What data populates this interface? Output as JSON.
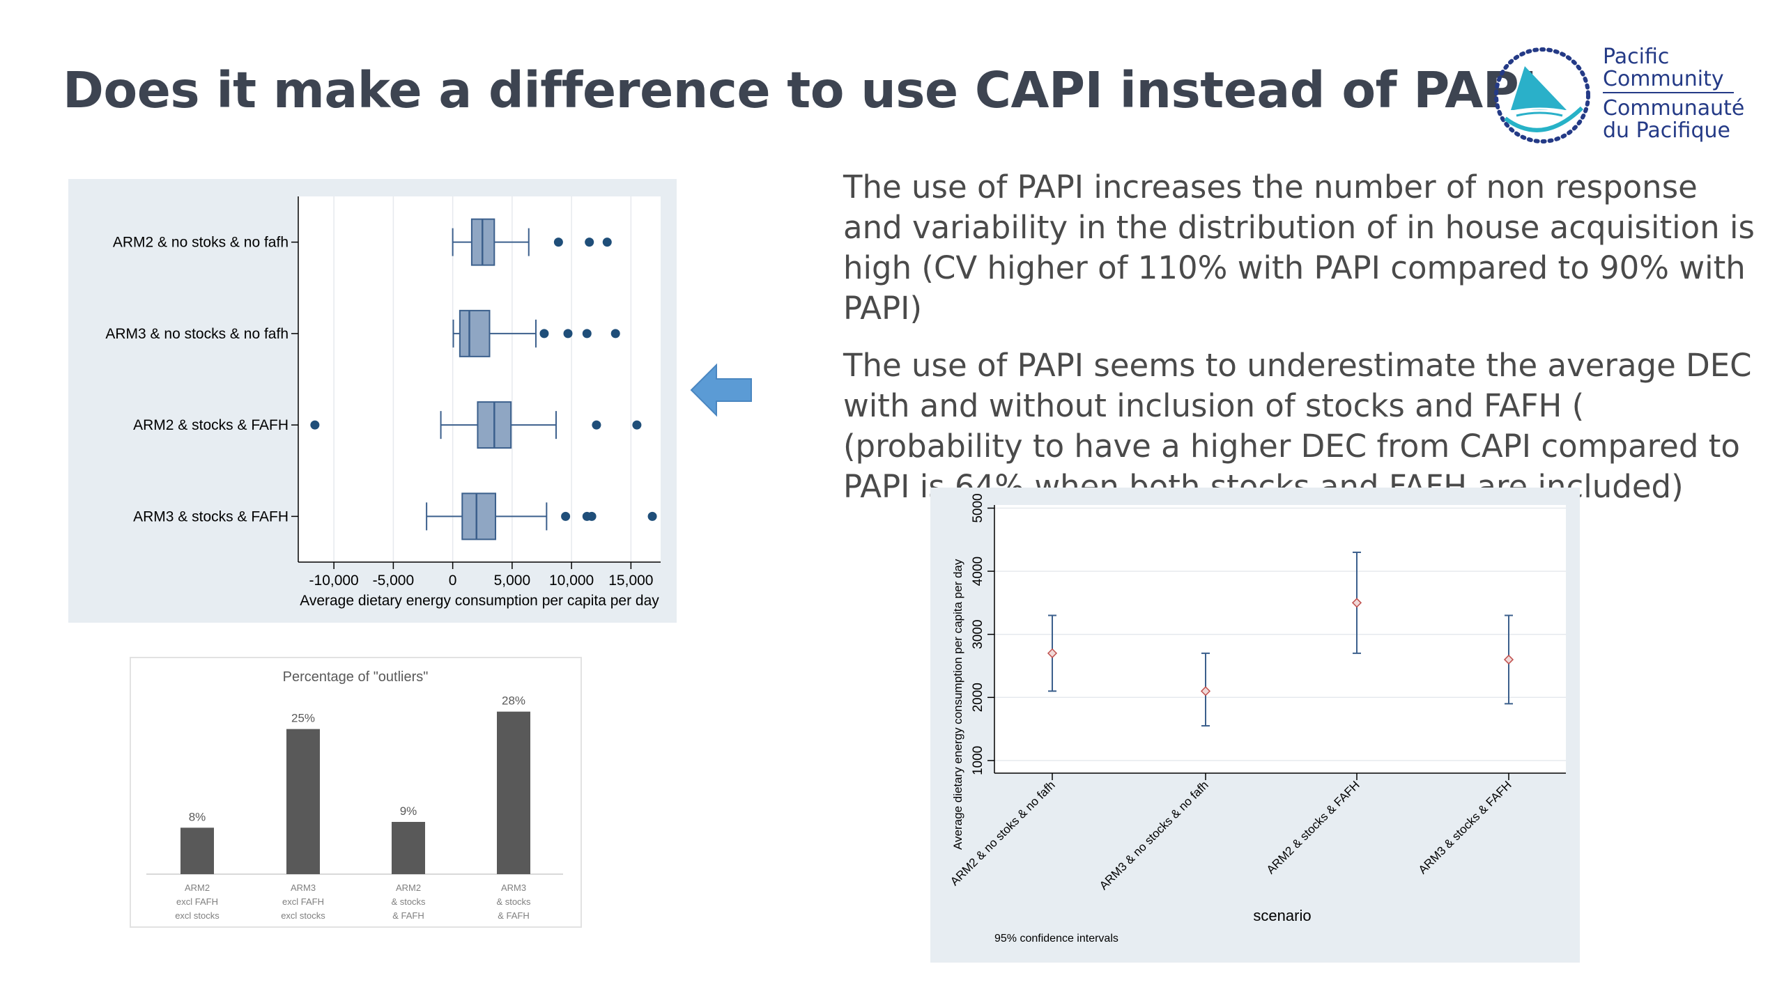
{
  "slide": {
    "title": "Does it make a difference to use CAPI instead of PAPI",
    "logo": {
      "line1": "Pacific",
      "line2": "Community",
      "line3": "Communauté",
      "line4": "du Pacifique"
    },
    "bullets": [
      "The use of PAPI increases the number of non response and variability in the distribution of in house acquisition is high (CV higher of 110% with PAPI compared to 90% with PAPI)",
      "The use of PAPI seems to underestimate the average DEC with and without inclusion of stocks and FAFH ( (probability to have a higher DEC from CAPI compared to PAPI is 64% when both stocks and FAFH are included)"
    ],
    "colors": {
      "title": "#3d4451",
      "panel_bg": "#e7edf2",
      "box_fill": "#8fa6c3",
      "box_stroke": "#3b5f8c",
      "point": "#1f4e79",
      "bar": "#595959",
      "ci_line": "#3b5f8c",
      "ci_point": "#c0504d",
      "arrow": "#5b9bd5"
    }
  },
  "chart_data": [
    {
      "type": "box",
      "xlabel": "Average dietary energy consumption per capita per day",
      "xlim": [
        -13000,
        17500
      ],
      "xticks": [
        -10000,
        -5000,
        0,
        5000,
        10000,
        15000
      ],
      "xtick_labels": [
        "-10,000",
        "-5,000",
        "0",
        "5,000",
        "10,000",
        "15,000"
      ],
      "categories": [
        "ARM2 & no stoks & no fafh",
        "ARM3 & no stocks & no fafh",
        "ARM2 & stocks & FAFH",
        "ARM3 & stocks & FAFH"
      ],
      "boxes": [
        {
          "whisker_low": 0,
          "q1": 1600,
          "median": 2500,
          "q3": 3500,
          "whisker_high": 6400,
          "outliers": [
            8900,
            11500,
            13000
          ]
        },
        {
          "whisker_low": 50,
          "q1": 600,
          "median": 1400,
          "q3": 3100,
          "whisker_high": 7000,
          "outliers": [
            7700,
            9700,
            11300,
            13700
          ]
        },
        {
          "whisker_low": -1000,
          "q1": 2100,
          "median": 3500,
          "q3": 4900,
          "whisker_high": 8700,
          "outliers": [
            -11600,
            12100,
            15500
          ]
        },
        {
          "whisker_low": -2200,
          "q1": 800,
          "median": 2000,
          "q3": 3600,
          "whisker_high": 7900,
          "outliers": [
            9500,
            11300,
            11700,
            16800
          ]
        }
      ]
    },
    {
      "type": "scatter",
      "subtype": "confidence_intervals",
      "xlabel": "scenario",
      "ylabel": "Average dietary energy consumption per capita per day",
      "note": "95% confidence intervals",
      "ylim": [
        800,
        5050
      ],
      "yticks": [
        1000,
        2000,
        3000,
        4000,
        5000
      ],
      "ytick_labels": [
        "1000",
        "2000",
        "3000",
        "4000",
        "5000"
      ],
      "categories": [
        "ARM2 & no stoks & no fafh",
        "ARM3 & no stocks & no fafh",
        "ARM2 & stocks & FAFH",
        "ARM3 & stocks & FAFH"
      ],
      "points": [
        {
          "mean": 2700,
          "low": 2100,
          "high": 3300
        },
        {
          "mean": 2100,
          "low": 1550,
          "high": 2700
        },
        {
          "mean": 3500,
          "low": 2700,
          "high": 4300
        },
        {
          "mean": 2600,
          "low": 1900,
          "high": 3300
        }
      ]
    },
    {
      "type": "bar",
      "title": "Percentage of \"outliers\"",
      "categories": [
        [
          "ARM2",
          "excl FAFH",
          "excl stocks"
        ],
        [
          "ARM3",
          "excl  FAFH",
          "excl stocks"
        ],
        [
          "ARM2",
          "& stocks",
          "& FAFH"
        ],
        [
          "ARM3",
          "& stocks",
          "& FAFH"
        ]
      ],
      "values": [
        8,
        25,
        9,
        28
      ],
      "data_labels": [
        "8%",
        "25%",
        "9%",
        "28%"
      ],
      "ylim": [
        0,
        30
      ]
    }
  ]
}
